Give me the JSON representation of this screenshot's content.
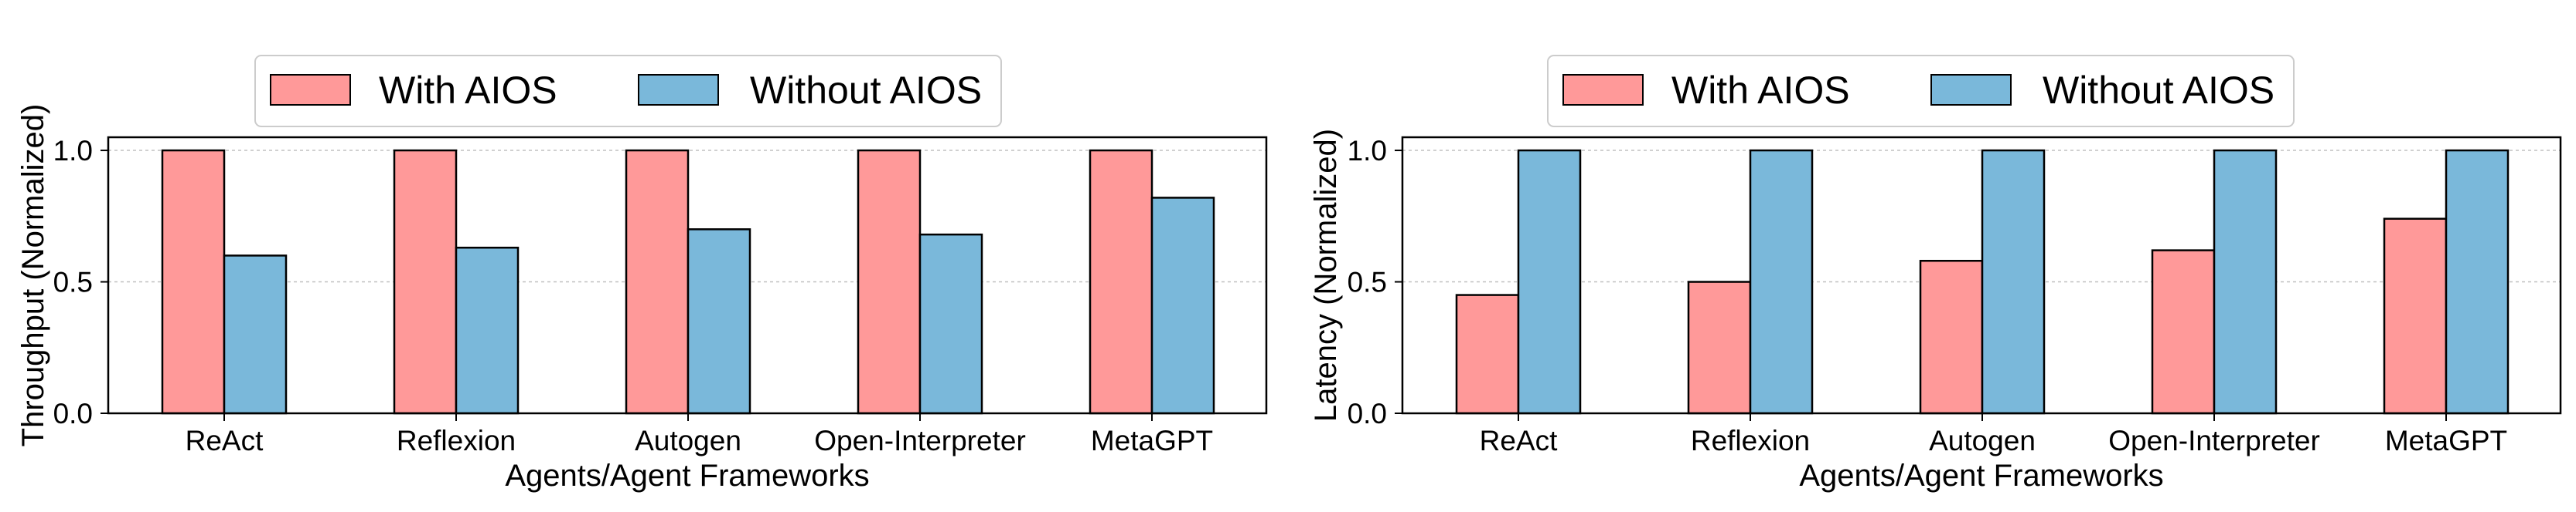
{
  "colors": {
    "with": "#FF9999",
    "without": "#7AB8DA",
    "edge": "#000000",
    "grid": "#c0c0c0"
  },
  "chart_data": [
    {
      "type": "bar",
      "xlabel": "Agents/Agent Frameworks",
      "ylabel": "Throughput (Normalized)",
      "categories": [
        "ReAct",
        "Reflexion",
        "Autogen",
        "Open-Interpreter",
        "MetaGPT"
      ],
      "series": [
        {
          "name": "With AIOS",
          "values": [
            1.0,
            1.0,
            1.0,
            1.0,
            1.0
          ]
        },
        {
          "name": "Without AIOS",
          "values": [
            0.6,
            0.63,
            0.7,
            0.68,
            0.82
          ]
        }
      ],
      "ylim": [
        0,
        1.05
      ],
      "yticks": [
        "0.0",
        "0.5",
        "1.0"
      ],
      "grid": "y-dashed",
      "legend": "top-center"
    },
    {
      "type": "bar",
      "xlabel": "Agents/Agent Frameworks",
      "ylabel": "Latency (Normalized)",
      "categories": [
        "ReAct",
        "Reflexion",
        "Autogen",
        "Open-Interpreter",
        "MetaGPT"
      ],
      "series": [
        {
          "name": "With AIOS",
          "values": [
            0.45,
            0.5,
            0.58,
            0.62,
            0.74
          ]
        },
        {
          "name": "Without AIOS",
          "values": [
            1.0,
            1.0,
            1.0,
            1.0,
            1.0
          ]
        }
      ],
      "ylim": [
        0,
        1.05
      ],
      "yticks": [
        "0.0",
        "0.5",
        "1.0"
      ],
      "grid": "y-dashed",
      "legend": "top-center"
    }
  ]
}
